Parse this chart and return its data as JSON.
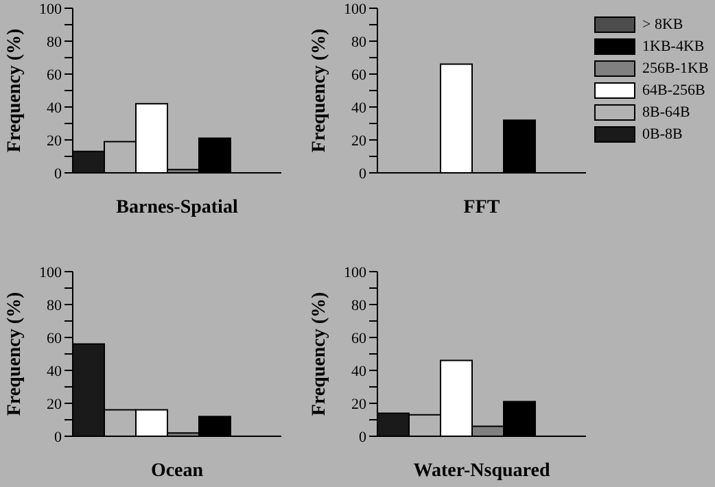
{
  "chart_data": [
    {
      "type": "bar",
      "title": "Barnes-Spatial",
      "ylabel": "Frequency (%)",
      "categories": [
        null
      ],
      "ylim": [
        0,
        100
      ],
      "yticks": [
        0,
        {
          "value": 10,
          "label": null
        },
        20,
        {
          "value": 30,
          "label": null
        },
        40,
        {
          "value": 50,
          "label": null
        },
        60,
        {
          "value": 70,
          "label": null
        },
        80,
        {
          "value": 90,
          "label": null
        },
        100
      ],
      "tick_labels": "y",
      "series": [
        {
          "color": "#1a1a1a",
          "values": [
            13
          ]
        },
        {
          "color": "#b3b3b3",
          "values": [
            19
          ]
        },
        {
          "color": "#ffffff",
          "values": [
            42
          ]
        },
        {
          "color": "#808080",
          "values": [
            2
          ]
        },
        {
          "color": "#000000",
          "values": [
            21
          ]
        },
        {
          "color": "#4d4d4d",
          "values": [
            0
          ]
        }
      ]
    },
    {
      "type": "bar",
      "title": "FFT",
      "ylabel": "Frequency (%)",
      "categories": [
        null
      ],
      "ylim": [
        0,
        100
      ],
      "yticks": [
        0,
        {
          "value": 10,
          "label": null
        },
        20,
        {
          "value": 30,
          "label": null
        },
        40,
        {
          "value": 50,
          "label": null
        },
        60,
        {
          "value": 70,
          "label": null
        },
        80,
        {
          "value": 90,
          "label": null
        },
        100
      ],
      "tick_labels": "y",
      "legend": "right",
      "series": [
        {
          "name": "0B-8B",
          "color": "#1a1a1a",
          "values": [
            0
          ]
        },
        {
          "name": "8B-64B",
          "color": "#b3b3b3",
          "values": [
            0
          ]
        },
        {
          "name": "64B-256B",
          "color": "#ffffff",
          "values": [
            66
          ]
        },
        {
          "name": "256B-1KB",
          "color": "#808080",
          "values": [
            0
          ]
        },
        {
          "name": "1KB-4KB",
          "color": "#000000",
          "values": [
            32
          ]
        },
        {
          "name": "> 8KB",
          "color": "#4d4d4d",
          "values": [
            0
          ]
        }
      ]
    },
    {
      "type": "bar",
      "title": "Ocean",
      "ylabel": "Frequency (%)",
      "categories": [
        null
      ],
      "ylim": [
        0,
        100
      ],
      "yticks": [
        0,
        {
          "value": 10,
          "label": null
        },
        20,
        {
          "value": 30,
          "label": null
        },
        40,
        {
          "value": 50,
          "label": null
        },
        60,
        {
          "value": 70,
          "label": null
        },
        80,
        {
          "value": 90,
          "label": null
        },
        100
      ],
      "tick_labels": "y",
      "series": [
        {
          "color": "#1a1a1a",
          "values": [
            56
          ]
        },
        {
          "color": "#b3b3b3",
          "values": [
            16
          ]
        },
        {
          "color": "#ffffff",
          "values": [
            16
          ]
        },
        {
          "color": "#808080",
          "values": [
            2
          ]
        },
        {
          "color": "#000000",
          "values": [
            12
          ]
        },
        {
          "color": "#4d4d4d",
          "values": [
            0
          ]
        }
      ]
    },
    {
      "type": "bar",
      "title": "Water-Nsquared",
      "ylabel": "Frequency (%)",
      "categories": [
        null
      ],
      "ylim": [
        0,
        100
      ],
      "yticks": [
        0,
        {
          "value": 10,
          "label": null
        },
        20,
        {
          "value": 30,
          "label": null
        },
        40,
        {
          "value": 50,
          "label": null
        },
        60,
        {
          "value": 70,
          "label": null
        },
        80,
        {
          "value": 90,
          "label": null
        },
        100
      ],
      "tick_labels": "y",
      "series": [
        {
          "color": "#1a1a1a",
          "values": [
            14
          ]
        },
        {
          "color": "#b3b3b3",
          "values": [
            13
          ]
        },
        {
          "color": "#ffffff",
          "values": [
            46
          ]
        },
        {
          "color": "#808080",
          "values": [
            6
          ]
        },
        {
          "color": "#000000",
          "values": [
            21
          ]
        },
        {
          "color": "#4d4d4d",
          "values": [
            0
          ]
        }
      ]
    }
  ]
}
